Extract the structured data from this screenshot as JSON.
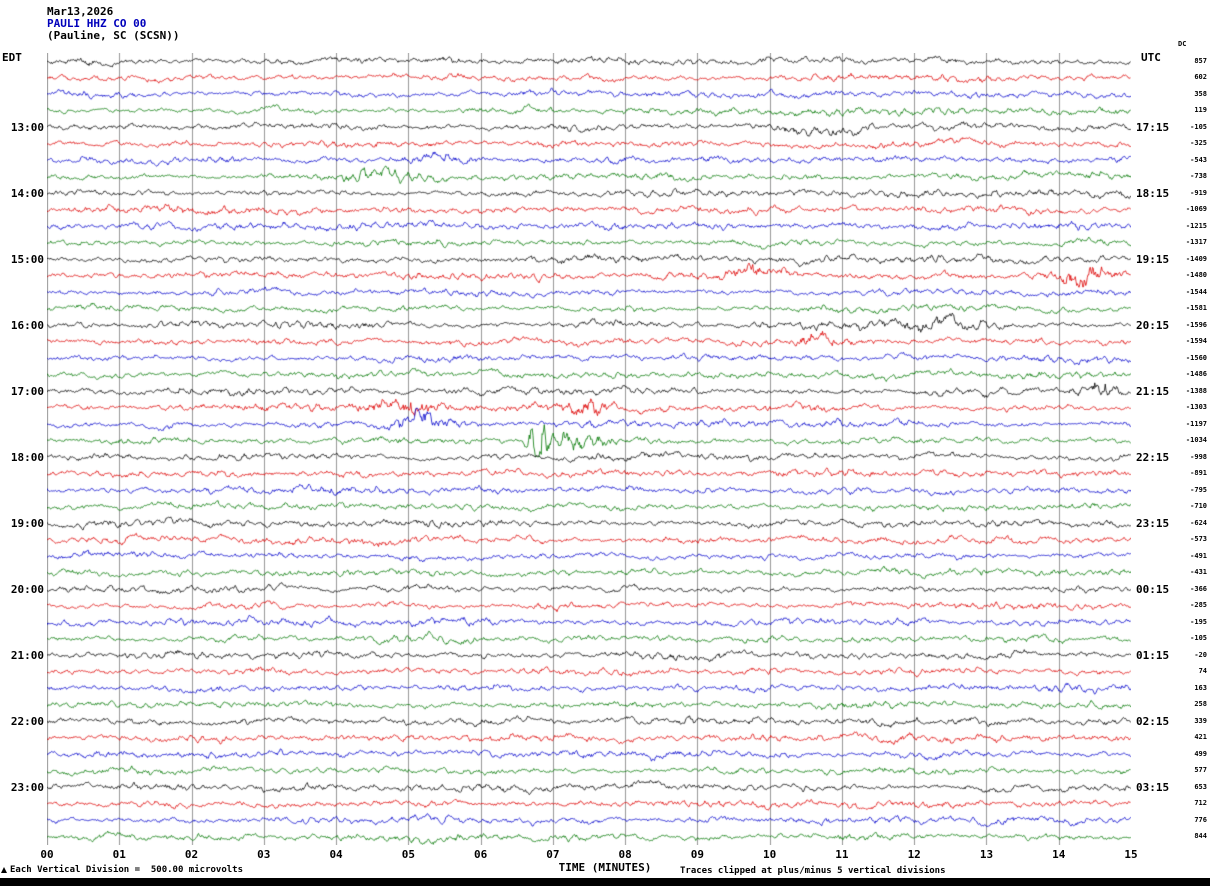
{
  "header": {
    "date": "Mar13,2026",
    "station": "PAULI HHZ CO 00",
    "location": "(Pauline, SC (SCSN))"
  },
  "axes": {
    "left_header": "EDT",
    "right_header": "UTC",
    "dc_header": "DC",
    "x_label": "TIME (MINUTES)",
    "x_ticks": [
      "00",
      "01",
      "02",
      "03",
      "04",
      "05",
      "06",
      "07",
      "08",
      "09",
      "10",
      "11",
      "12",
      "13",
      "14",
      "15"
    ],
    "footer_left": "Each Vertical Division =  500.00 microvolts",
    "footer_right": "Traces clipped at plus/minus 5 vertical divisions"
  },
  "chart_data": {
    "type": "line",
    "subtype": "helicorder-seismogram",
    "title": "PAULI HHZ CO 00 (Pauline, SC (SCSN)) Mar13,2026",
    "xlabel": "TIME (MINUTES)",
    "x_range": [
      0,
      15
    ],
    "minutes_per_row": 15,
    "grid": "vertical lines at each minute",
    "trace_colors_cycle": [
      "#000000",
      "#dd0000",
      "#0000cc",
      "#007700"
    ],
    "note": "48 quarter-hour traces of background seismic noise, clipped at plus/minus 5 vertical divisions; waveform rendered synthetically with notable bursts listed below",
    "rows": [
      {
        "color": "#000000",
        "left": "",
        "right": "",
        "dc": "857"
      },
      {
        "color": "#dd0000",
        "left": "",
        "right": "",
        "dc": "602"
      },
      {
        "color": "#0000cc",
        "left": "",
        "right": "",
        "dc": "358"
      },
      {
        "color": "#007700",
        "left": "",
        "right": "",
        "dc": "119"
      },
      {
        "color": "#000000",
        "left": "13:00",
        "right": "17:15",
        "dc": "-105"
      },
      {
        "color": "#dd0000",
        "left": "",
        "right": "",
        "dc": "-325"
      },
      {
        "color": "#0000cc",
        "left": "",
        "right": "",
        "dc": "-543"
      },
      {
        "color": "#007700",
        "left": "",
        "right": "",
        "dc": "-738"
      },
      {
        "color": "#000000",
        "left": "14:00",
        "right": "18:15",
        "dc": "-919"
      },
      {
        "color": "#dd0000",
        "left": "",
        "right": "",
        "dc": "-1069"
      },
      {
        "color": "#0000cc",
        "left": "",
        "right": "",
        "dc": "-1215"
      },
      {
        "color": "#007700",
        "left": "",
        "right": "",
        "dc": "-1317"
      },
      {
        "color": "#000000",
        "left": "15:00",
        "right": "19:15",
        "dc": "-1409"
      },
      {
        "color": "#dd0000",
        "left": "",
        "right": "",
        "dc": "-1480"
      },
      {
        "color": "#0000cc",
        "left": "",
        "right": "",
        "dc": "-1544"
      },
      {
        "color": "#007700",
        "left": "",
        "right": "",
        "dc": "-1581"
      },
      {
        "color": "#000000",
        "left": "16:00",
        "right": "20:15",
        "dc": "-1596"
      },
      {
        "color": "#dd0000",
        "left": "",
        "right": "",
        "dc": "-1594"
      },
      {
        "color": "#0000cc",
        "left": "",
        "right": "",
        "dc": "-1560"
      },
      {
        "color": "#007700",
        "left": "",
        "right": "",
        "dc": "-1486"
      },
      {
        "color": "#000000",
        "left": "17:00",
        "right": "21:15",
        "dc": "-1388"
      },
      {
        "color": "#dd0000",
        "left": "",
        "right": "",
        "dc": "-1303"
      },
      {
        "color": "#0000cc",
        "left": "",
        "right": "",
        "dc": "-1197"
      },
      {
        "color": "#007700",
        "left": "",
        "right": "",
        "dc": "-1034"
      },
      {
        "color": "#000000",
        "left": "18:00",
        "right": "22:15",
        "dc": "-998"
      },
      {
        "color": "#dd0000",
        "left": "",
        "right": "",
        "dc": "-891"
      },
      {
        "color": "#0000cc",
        "left": "",
        "right": "",
        "dc": "-795"
      },
      {
        "color": "#007700",
        "left": "",
        "right": "",
        "dc": "-710"
      },
      {
        "color": "#000000",
        "left": "19:00",
        "right": "23:15",
        "dc": "-624"
      },
      {
        "color": "#dd0000",
        "left": "",
        "right": "",
        "dc": "-573"
      },
      {
        "color": "#0000cc",
        "left": "",
        "right": "",
        "dc": "-491"
      },
      {
        "color": "#007700",
        "left": "",
        "right": "",
        "dc": "-431"
      },
      {
        "color": "#000000",
        "left": "20:00",
        "right": "00:15",
        "dc": "-366"
      },
      {
        "color": "#dd0000",
        "left": "",
        "right": "",
        "dc": "-285"
      },
      {
        "color": "#0000cc",
        "left": "",
        "right": "",
        "dc": "-195"
      },
      {
        "color": "#007700",
        "left": "",
        "right": "",
        "dc": "-105"
      },
      {
        "color": "#000000",
        "left": "21:00",
        "right": "01:15",
        "dc": "-20"
      },
      {
        "color": "#dd0000",
        "left": "",
        "right": "",
        "dc": "74"
      },
      {
        "color": "#0000cc",
        "left": "",
        "right": "",
        "dc": "163"
      },
      {
        "color": "#007700",
        "left": "",
        "right": "",
        "dc": "258"
      },
      {
        "color": "#000000",
        "left": "22:00",
        "right": "02:15",
        "dc": "339"
      },
      {
        "color": "#dd0000",
        "left": "",
        "right": "",
        "dc": "421"
      },
      {
        "color": "#0000cc",
        "left": "",
        "right": "",
        "dc": "499"
      },
      {
        "color": "#007700",
        "left": "",
        "right": "",
        "dc": "577"
      },
      {
        "color": "#000000",
        "left": "23:00",
        "right": "03:15",
        "dc": "653"
      },
      {
        "color": "#dd0000",
        "left": "",
        "right": "",
        "dc": "712"
      },
      {
        "color": "#0000cc",
        "left": "",
        "right": "",
        "dc": "776"
      },
      {
        "color": "#007700",
        "left": "",
        "right": "",
        "dc": "844"
      }
    ],
    "bursts": [
      {
        "row": 23,
        "minute": 6.8,
        "amp": 30,
        "width": 0.18
      },
      {
        "row": 23,
        "minute": 7.3,
        "amp": 6,
        "width": 0.5
      },
      {
        "row": 21,
        "minute": 4.9,
        "amp": 5,
        "width": 0.8
      },
      {
        "row": 21,
        "minute": 7.55,
        "amp": 6,
        "width": 0.35
      },
      {
        "row": 22,
        "minute": 5.2,
        "amp": 5,
        "width": 0.5
      },
      {
        "row": 13,
        "minute": 9.8,
        "amp": 4,
        "width": 0.6
      },
      {
        "row": 13,
        "minute": 14.3,
        "amp": 6,
        "width": 0.6
      },
      {
        "row": 17,
        "minute": 10.6,
        "amp": 4,
        "width": 0.4
      },
      {
        "row": 16,
        "minute": 12.3,
        "amp": 3,
        "width": 1.0
      },
      {
        "row": 7,
        "minute": 4.5,
        "amp": 3,
        "width": 0.9
      },
      {
        "row": 6,
        "minute": 5.4,
        "amp": 3,
        "width": 0.7
      },
      {
        "row": 4,
        "minute": 10.5,
        "amp": 3,
        "width": 0.8
      },
      {
        "row": 20,
        "minute": 14.6,
        "amp": 4,
        "width": 0.3
      }
    ]
  }
}
